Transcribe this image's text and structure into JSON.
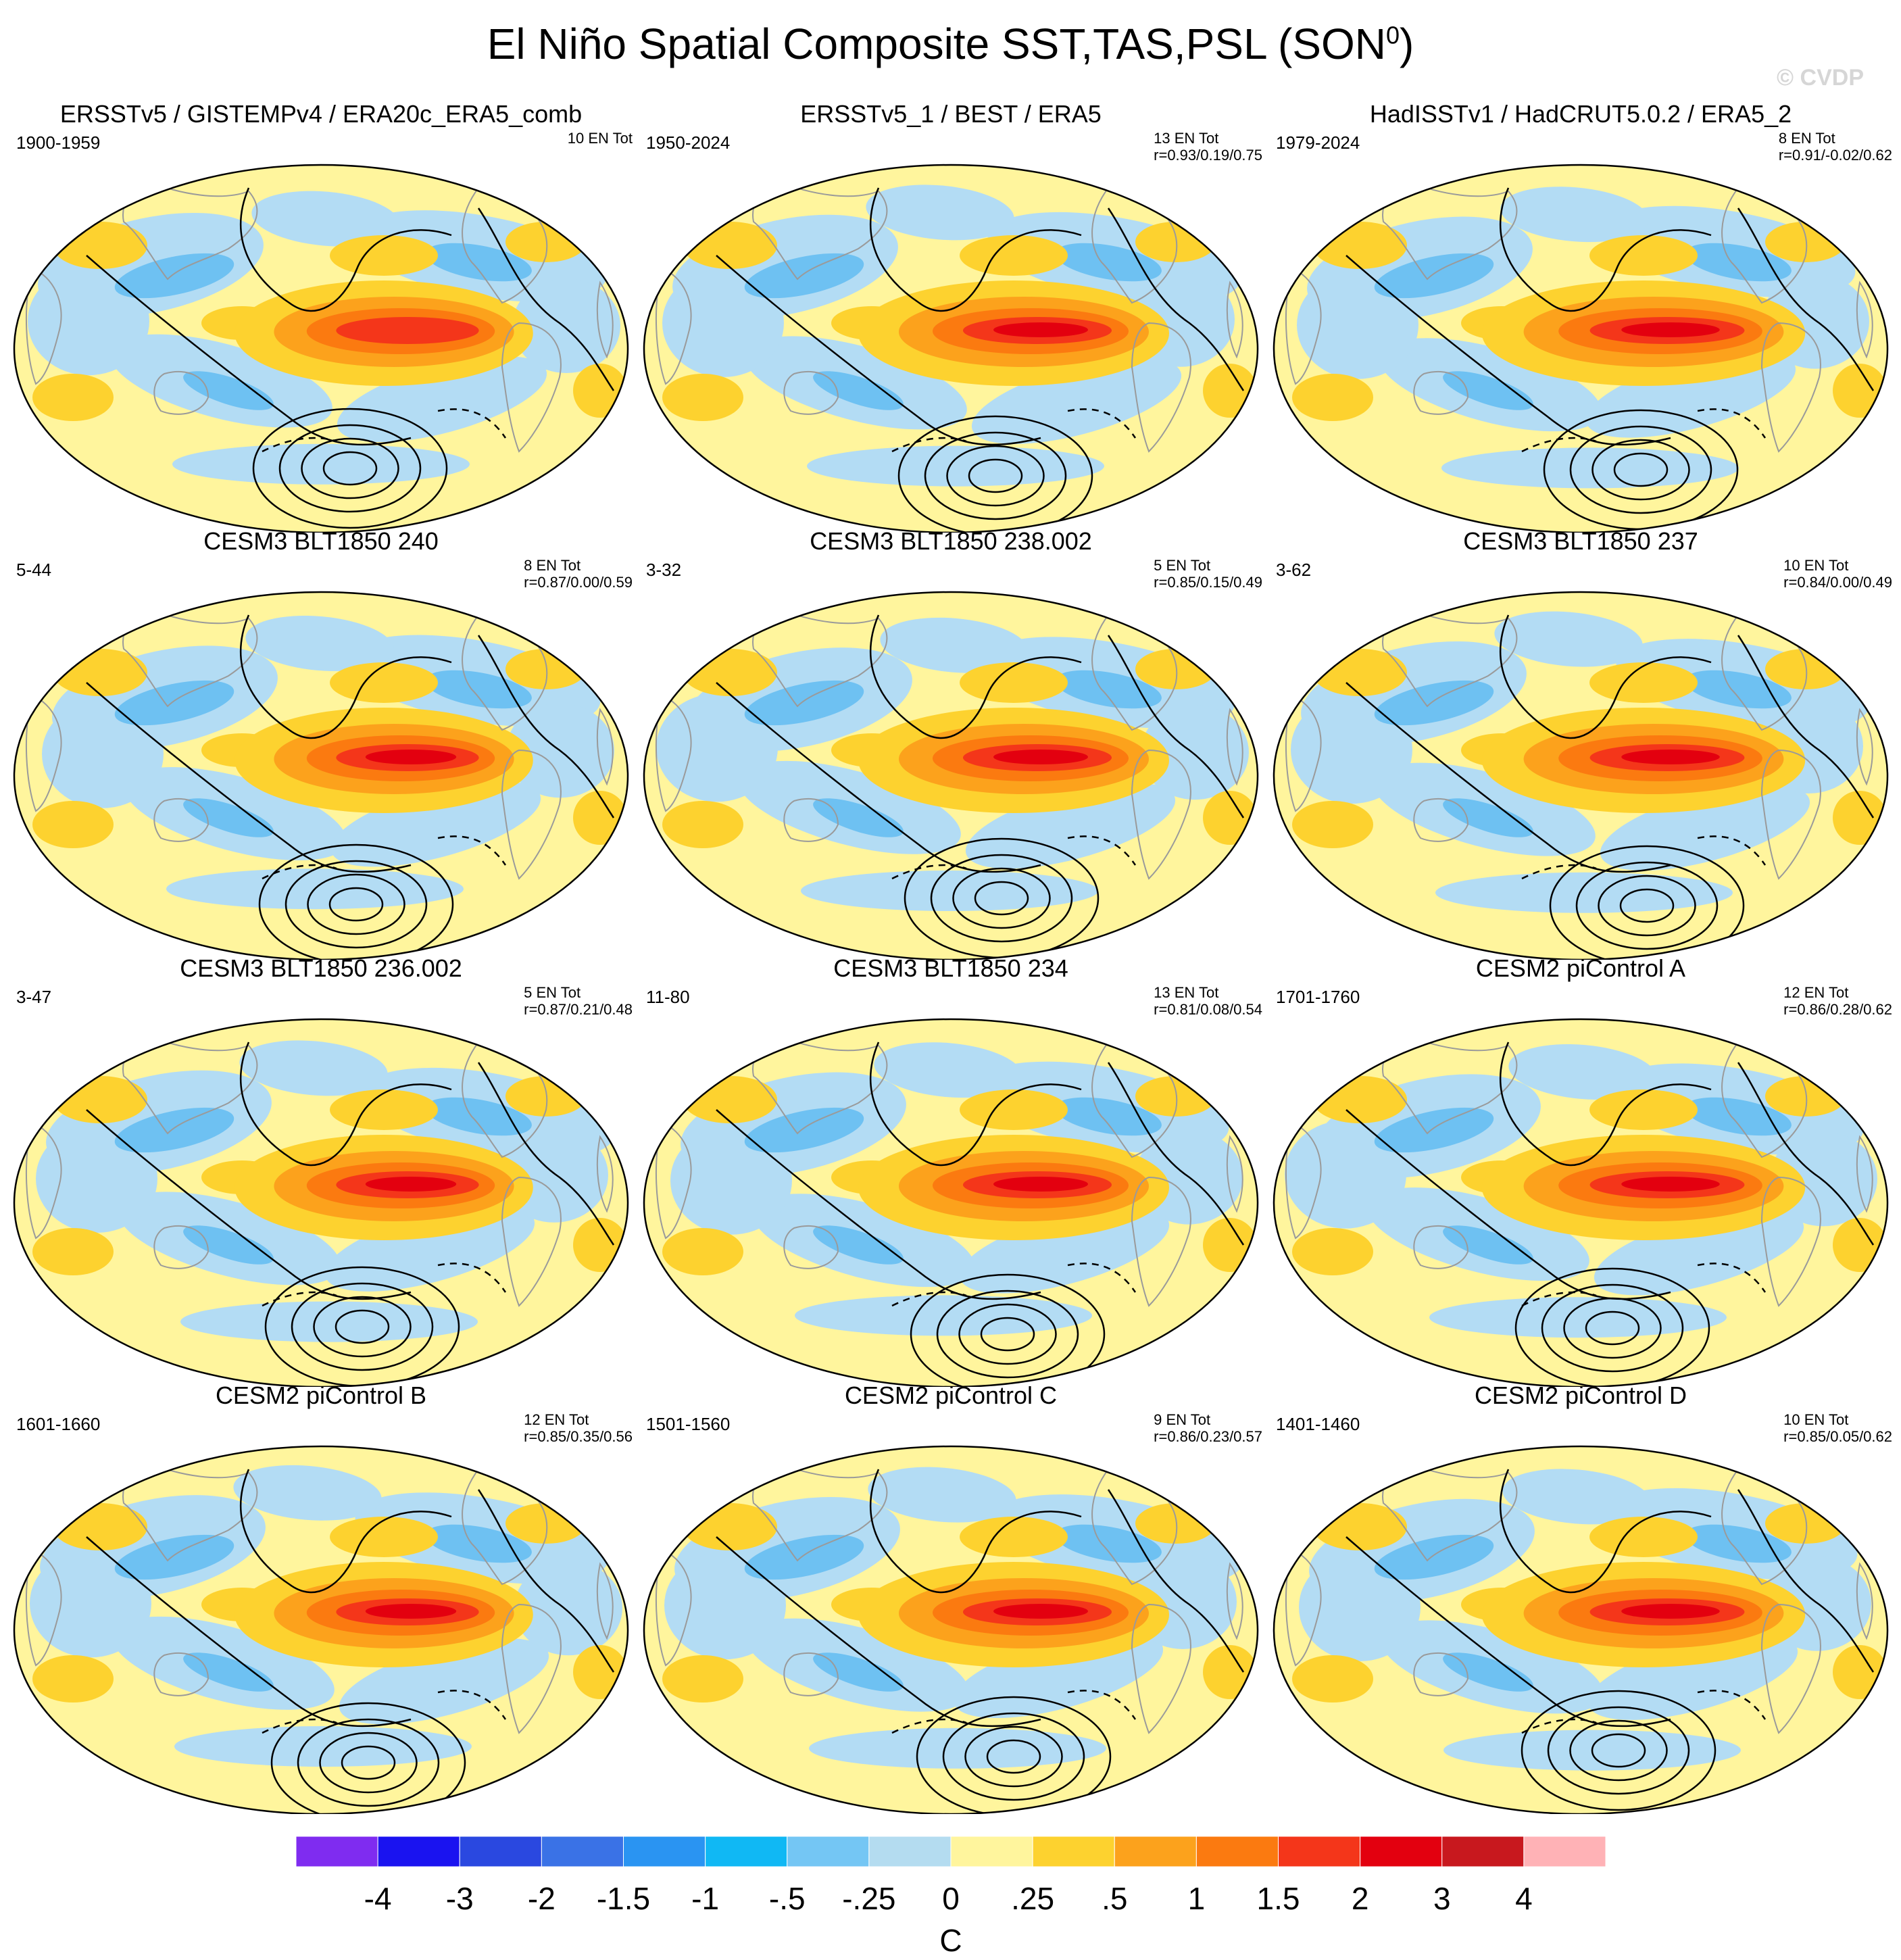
{
  "title_main": "El Niño Spatial Composite SST,TAS,PSL (SON",
  "title_sup": "0",
  "title_end": ")",
  "watermark": "© CVDP",
  "colors": {
    "ocean_light_blue": "#b3dcf4",
    "sky_blue": "#6ec1f2",
    "light_yellow": "#fff59d",
    "gold": "#fdd22f",
    "orange": "#fca21c",
    "dark_orange": "#fb7a10",
    "red_orange": "#f4361a",
    "red": "#e3000f",
    "land_outline": "#9a9a9a",
    "contour": "#000000"
  },
  "panels": [
    {
      "title": "ERSSTv5 / GISTEMPv4 / ERA20c_ERA5_comb",
      "years": "1900-1959",
      "count": "10 EN Tot",
      "stats": ""
    },
    {
      "title": "ERSSTv5_1 / BEST / ERA5",
      "years": "1950-2024",
      "count": "13 EN Tot",
      "stats": "r=0.93/0.19/0.75"
    },
    {
      "title": "HadISSTv1 / HadCRUT5.0.2 / ERA5_2",
      "years": "1979-2024",
      "count": "8 EN Tot",
      "stats": "r=0.91/-0.02/0.62"
    },
    {
      "title": "CESM3 BLT1850 240",
      "years": "5-44",
      "count": "8 EN Tot",
      "stats": "r=0.87/0.00/0.59"
    },
    {
      "title": "CESM3 BLT1850 238.002",
      "years": "3-32",
      "count": "5 EN Tot",
      "stats": "r=0.85/0.15/0.49"
    },
    {
      "title": "CESM3 BLT1850 237",
      "years": "3-62",
      "count": "10 EN Tot",
      "stats": "r=0.84/0.00/0.49"
    },
    {
      "title": "CESM3 BLT1850 236.002",
      "years": "3-47",
      "count": "5 EN Tot",
      "stats": "r=0.87/0.21/0.48"
    },
    {
      "title": "CESM3 BLT1850 234",
      "years": "11-80",
      "count": "13 EN Tot",
      "stats": "r=0.81/0.08/0.54"
    },
    {
      "title": "CESM2 piControl A",
      "years": "1701-1760",
      "count": "12 EN Tot",
      "stats": "r=0.86/0.28/0.62"
    },
    {
      "title": "CESM2 piControl B",
      "years": "1601-1660",
      "count": "12 EN Tot",
      "stats": "r=0.85/0.35/0.56"
    },
    {
      "title": "CESM2 piControl C",
      "years": "1501-1560",
      "count": "9 EN Tot",
      "stats": "r=0.86/0.23/0.57"
    },
    {
      "title": "CESM2 piControl D",
      "years": "1401-1460",
      "count": "10 EN Tot",
      "stats": "r=0.85/0.05/0.62"
    }
  ],
  "chart_data": {
    "type": "heatmap",
    "title": "El Niño Spatial Composite SST,TAS,PSL (SON0)",
    "projection": "Robinson (Pacific-centered)",
    "fill_variable": "SST/TAS composite anomaly",
    "contour_variable": "PSL composite anomaly",
    "colorbar": {
      "unit": "C",
      "tick_labels": [
        "-4",
        "-3",
        "-2",
        "-1.5",
        "-1",
        "-.5",
        "-.25",
        "0",
        ".25",
        ".5",
        "1",
        "1.5",
        "2",
        "3",
        "4"
      ],
      "levels": [
        -4,
        -3,
        -2,
        -1.5,
        -1,
        -0.5,
        -0.25,
        0,
        0.25,
        0.5,
        1,
        1.5,
        2,
        3,
        4
      ],
      "colors": [
        "#7f2cf0",
        "#1a13f0",
        "#2a48e0",
        "#3a72e6",
        "#2a94f2",
        "#10b8f4",
        "#74c6f4",
        "#b4dcf0",
        "#fff59d",
        "#fdd22f",
        "#fca21c",
        "#fb7a10",
        "#f4361a",
        "#e3000f",
        "#c8181e",
        "#ffb2b6"
      ]
    },
    "panels": [
      "ERSSTv5 / GISTEMPv4 / ERA20c_ERA5_comb",
      "ERSSTv5_1 / BEST / ERA5",
      "HadISSTv1 / HadCRUT5.0.2 / ERA5_2",
      "CESM3 BLT1850 240",
      "CESM3 BLT1850 238.002",
      "CESM3 BLT1850 237",
      "CESM3 BLT1850 236.002",
      "CESM3 BLT1850 234",
      "CESM2 piControl A",
      "CESM2 piControl B",
      "CESM2 piControl C",
      "CESM2 piControl D"
    ]
  }
}
